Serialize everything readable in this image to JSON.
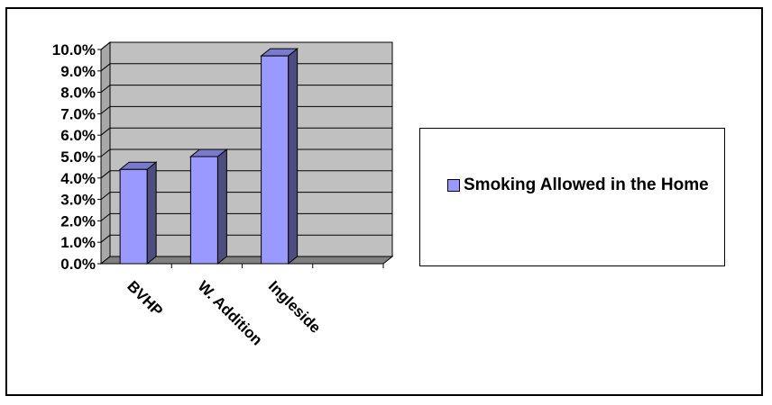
{
  "chart_data": {
    "type": "bar",
    "categories": [
      "BVHP",
      "W. Addition",
      "Ingleside"
    ],
    "series": [
      {
        "name": "Smoking Allowed in the Home",
        "values": [
          4.4,
          5.0,
          9.7
        ]
      }
    ],
    "yticks": [
      "0.0%",
      "1.0%",
      "2.0%",
      "3.0%",
      "4.0%",
      "5.0%",
      "6.0%",
      "7.0%",
      "8.0%",
      "9.0%",
      "10.0%"
    ],
    "ylim": [
      0,
      10
    ],
    "unit": "%",
    "grid": true,
    "legend_position": "right",
    "colors": {
      "bar_face": "#9999ff",
      "bar_side": "#4d4d80",
      "bar_top": "#7a7acc",
      "wall": "#c0c0c0",
      "floor": "#808080"
    }
  }
}
